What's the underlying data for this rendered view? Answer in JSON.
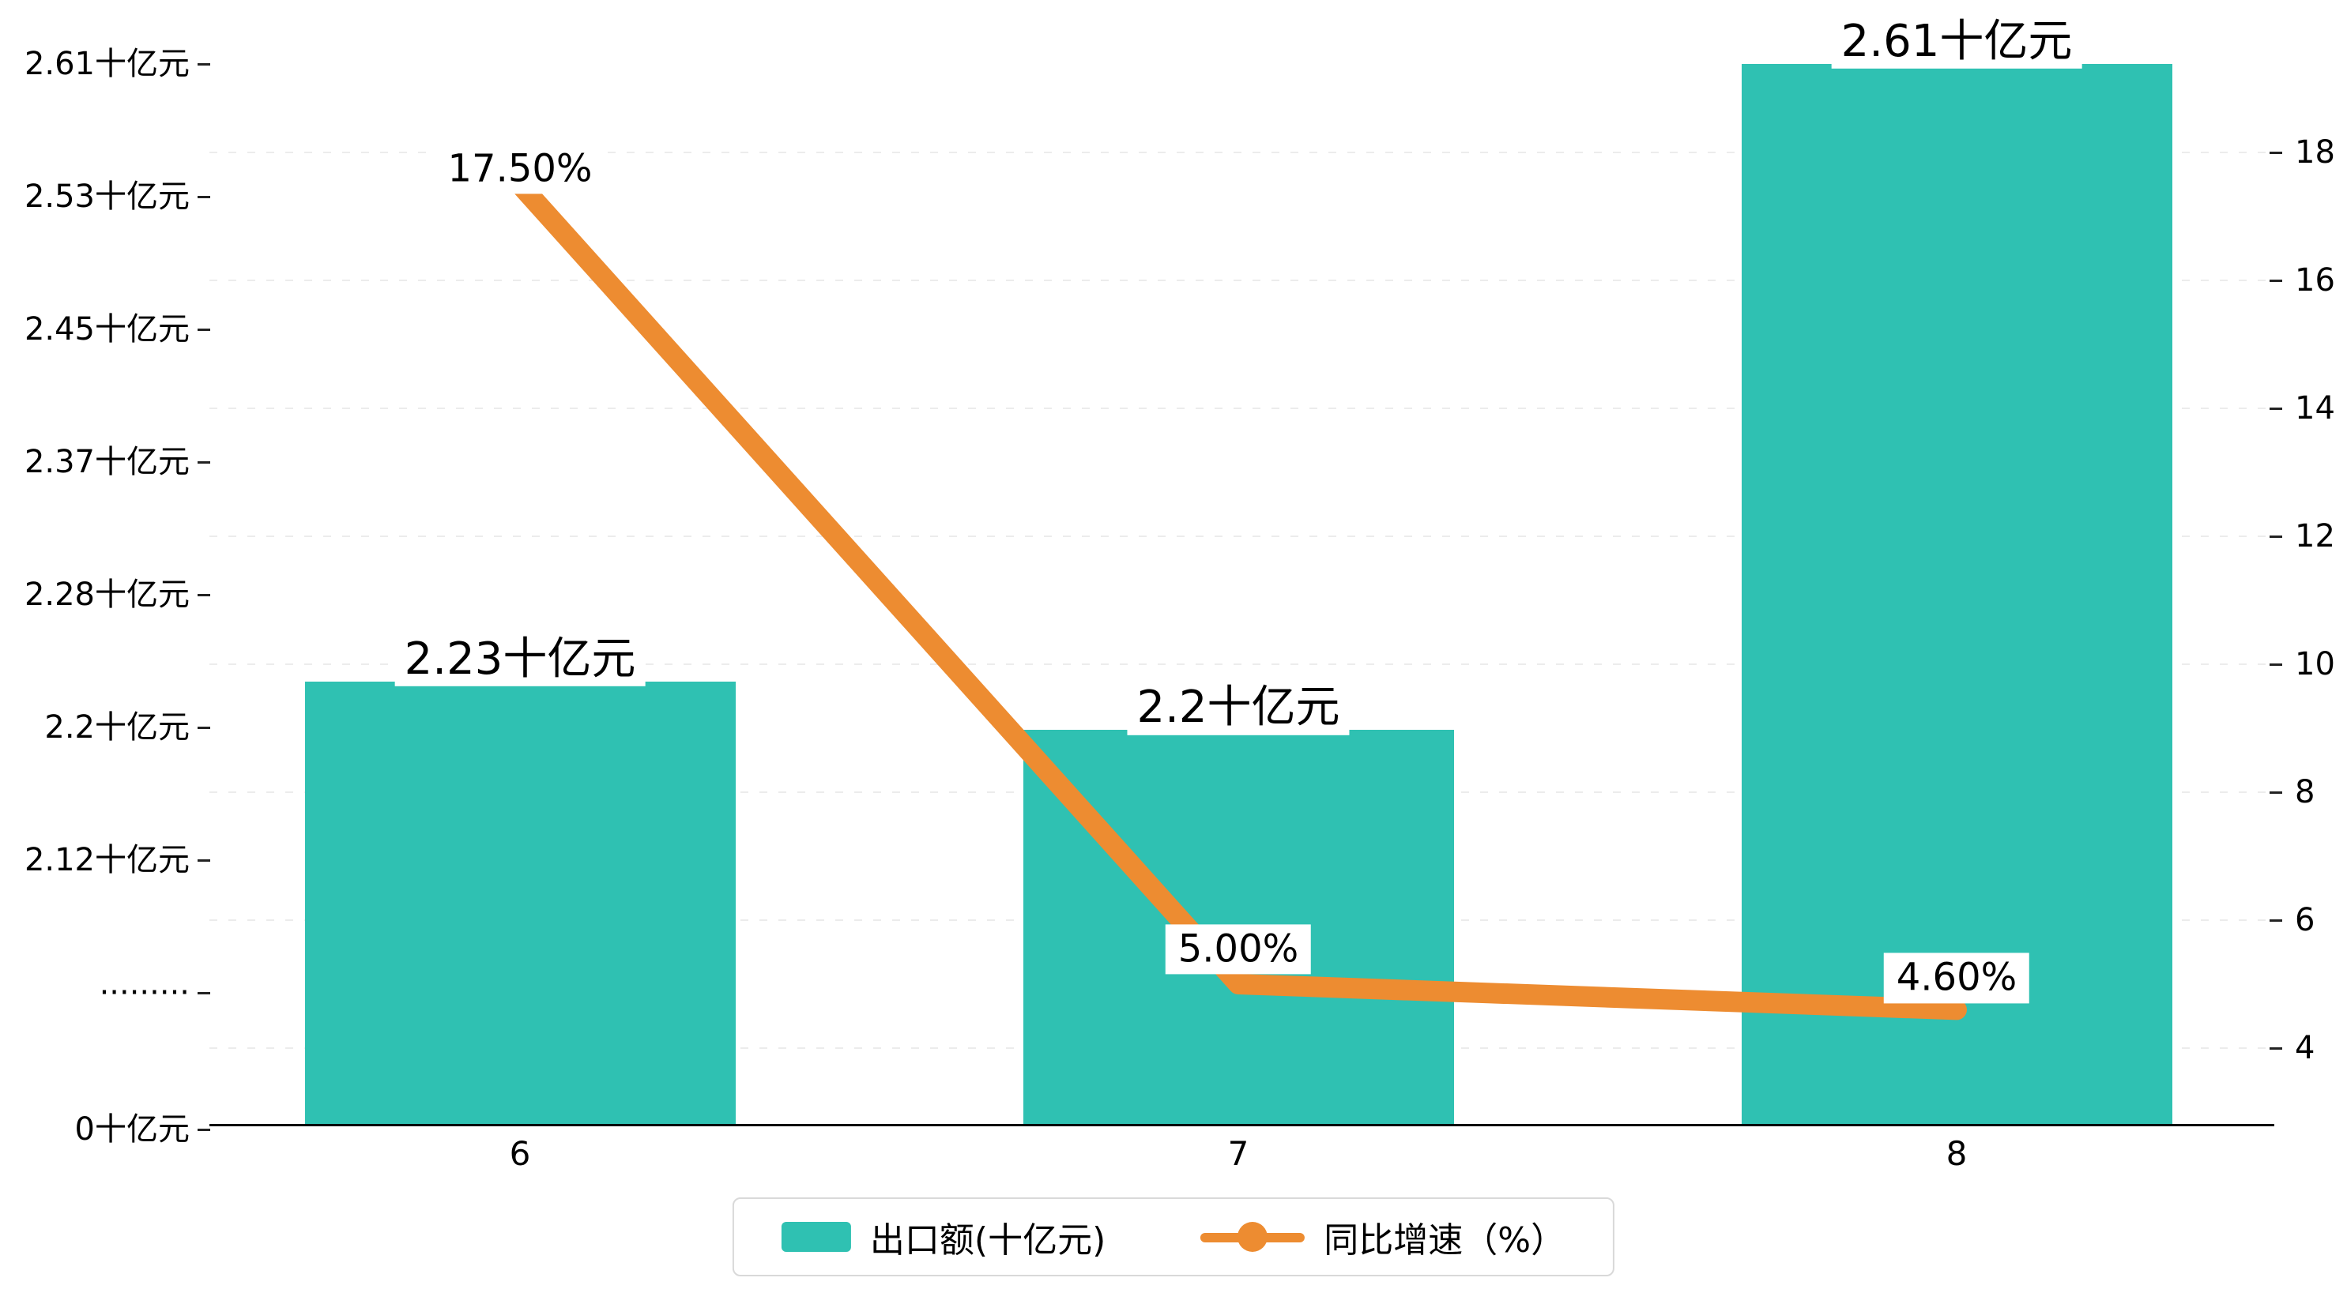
{
  "colors": {
    "bar": "#2fc1b2",
    "line": "#ed8c31",
    "grid": "#ececec",
    "axis": "#000000",
    "label_text": "#000000",
    "background": "#ffffff",
    "legend_border": "#d9d9d9"
  },
  "chart_data": {
    "type": "bar",
    "subtype": "bar+line dual axis",
    "categories": [
      "6",
      "7",
      "8"
    ],
    "series": [
      {
        "name": "出口额(十亿元)",
        "type": "bar",
        "axis": "left",
        "color": "#2fc1b2",
        "values": [
          2.23,
          2.2,
          2.61
        ],
        "labels": [
          "2.23十亿元",
          "2.2十亿元",
          "2.61十亿元"
        ]
      },
      {
        "name": "同比增速（%）",
        "type": "line",
        "axis": "right",
        "color": "#ed8c31",
        "values": [
          17.5,
          5.0,
          4.6
        ],
        "labels": [
          "17.50%",
          "5.00%",
          "4.60%"
        ]
      }
    ],
    "left_axis": {
      "broken": true,
      "tick_labels": [
        "2.61十亿元",
        "2.53十亿元",
        "2.45十亿元",
        "2.37十亿元",
        "2.28十亿元",
        "2.2十亿元",
        "2.12十亿元",
        "·········",
        "0十亿元"
      ],
      "tick_values": [
        2.61,
        2.53,
        2.45,
        2.37,
        2.28,
        2.2,
        2.12,
        null,
        0
      ]
    },
    "right_axis": {
      "tick_labels": [
        "18",
        "16",
        "14",
        "12",
        "10",
        "8",
        "6",
        "4"
      ],
      "tick_values": [
        18,
        16,
        14,
        12,
        10,
        8,
        6,
        4
      ],
      "range": [
        4,
        18
      ]
    },
    "grid": true,
    "legend_position": "bottom",
    "legend": [
      {
        "label": "出口额(十亿元)",
        "marker": "bar",
        "color": "#2fc1b2"
      },
      {
        "label": "同比增速（%）",
        "marker": "line",
        "color": "#ed8c31"
      }
    ]
  }
}
